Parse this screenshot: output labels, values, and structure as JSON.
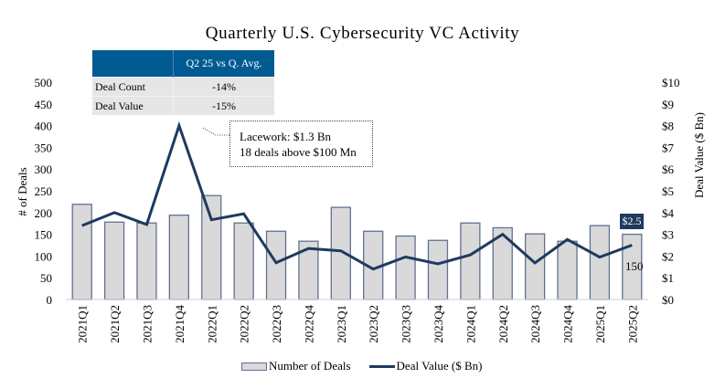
{
  "chart_data": {
    "type": "bar",
    "title": "Quarterly U.S. Cybersecurity VC Activity",
    "categories": [
      "2021Q1",
      "2021Q2",
      "2021Q3",
      "2021Q4",
      "2022Q1",
      "2022Q2",
      "2022Q3",
      "2022Q4",
      "2023Q1",
      "2023Q2",
      "2023Q3",
      "2023Q4",
      "2024Q1",
      "2024Q2",
      "2024Q3",
      "2024Q4",
      "2025Q1",
      "2025Q2"
    ],
    "series": [
      {
        "name": "Number of Deals",
        "type": "bar",
        "axis": "left",
        "values": [
          219,
          178,
          176,
          194,
          239,
          176,
          157,
          134,
          212,
          157,
          146,
          136,
          176,
          165,
          151,
          134,
          170,
          150
        ]
      },
      {
        "name": "Deal Value ($ Bn)",
        "type": "line",
        "axis": "right",
        "values": [
          3.4,
          4.0,
          3.45,
          8.0,
          3.67,
          3.94,
          1.69,
          2.35,
          2.24,
          1.4,
          1.96,
          1.64,
          2.05,
          3.0,
          1.68,
          2.76,
          1.95,
          2.5
        ]
      }
    ],
    "ylabel": "# of Deals",
    "y2label": "Deal Value ($ Bn)",
    "ylim": [
      0,
      500
    ],
    "y2lim": [
      0,
      10
    ],
    "yticks": [
      "0",
      "50",
      "100",
      "150",
      "200",
      "250",
      "300",
      "350",
      "400",
      "450",
      "500"
    ],
    "y2ticks": [
      "$0",
      "$1",
      "$2",
      "$3",
      "$4",
      "$5",
      "$6",
      "$7",
      "$8",
      "$9",
      "$10"
    ],
    "grid": false,
    "legend_position": "bottom",
    "data_labels": {
      "last_bar": "150",
      "last_line": "$2.5"
    },
    "annotation": {
      "lines": [
        "Lacework: $1.3 Bn",
        "18 deals above $100 Mn"
      ],
      "points_to": "2021Q4"
    },
    "colors": {
      "bar_fill": "#d9d9d9",
      "bar_border": "#5f7290",
      "line": "#1f3a5f",
      "table_header": "#005b93",
      "table_body": "#e6e6e6"
    }
  },
  "summary_table": {
    "header": "Q2 25 vs Q. Avg.",
    "rows": [
      {
        "label": "Deal Count",
        "value": "-14%"
      },
      {
        "label": "Deal Value",
        "value": "-15%"
      }
    ]
  },
  "legend": {
    "bars": "Number of Deals",
    "line": "Deal Value ($ Bn)"
  }
}
